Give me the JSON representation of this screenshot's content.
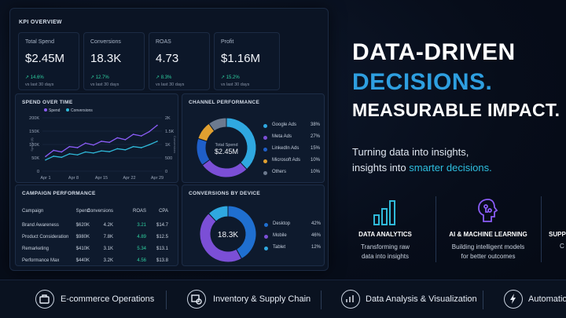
{
  "kpi_overview": {
    "title": "KPI OVERVIEW",
    "cards": [
      {
        "label": "Total Spend",
        "value": "$2.45M",
        "change": "↗ 14.6%",
        "sub": "vs last 30 days"
      },
      {
        "label": "Conversions",
        "value": "18.3K",
        "change": "↗ 12.7%",
        "sub": "vs last 30 days"
      },
      {
        "label": "ROAS",
        "value": "4.73",
        "change": "↗ 8.3%",
        "sub": "vs last 30 days"
      },
      {
        "label": "Profit",
        "value": "$1.16M",
        "change": "↗ 15.2%",
        "sub": "vs last 30 days"
      }
    ]
  },
  "spend_chart": {
    "title": "SPEND OVER TIME",
    "legend": [
      "Spend",
      "Conversions"
    ],
    "left_ticks": [
      "200K",
      "150K",
      "100K",
      "50K",
      "0"
    ],
    "right_ticks": [
      "2K",
      "1.5K",
      "1K",
      "500",
      "0"
    ],
    "x_ticks": [
      "Apr 1",
      "Apr 8",
      "Apr 15",
      "Apr 22",
      "Apr 29"
    ],
    "left_axis_label": "Spend ($)",
    "right_axis_label": "Conversions",
    "colors": {
      "spend": "#8a5cf6",
      "conversions": "#2fb9d9"
    }
  },
  "chart_data": [
    {
      "type": "line",
      "title": "SPEND OVER TIME",
      "x": [
        "Apr 1",
        "Apr 3",
        "Apr 5",
        "Apr 7",
        "Apr 9",
        "Apr 11",
        "Apr 13",
        "Apr 15",
        "Apr 17",
        "Apr 19",
        "Apr 21",
        "Apr 23",
        "Apr 25",
        "Apr 27",
        "Apr 29"
      ],
      "series": [
        {
          "name": "Spend",
          "axis": "left",
          "values": [
            55000,
            78000,
            72000,
            92000,
            88000,
            105000,
            98000,
            112000,
            108000,
            125000,
            118000,
            138000,
            132000,
            148000,
            172000
          ]
        },
        {
          "name": "Conversions",
          "axis": "right",
          "values": [
            420,
            560,
            520,
            650,
            610,
            720,
            680,
            760,
            730,
            840,
            800,
            920,
            880,
            990,
            1120
          ]
        }
      ],
      "ylim_left": [
        0,
        200000
      ],
      "ylim_right": [
        0,
        2000
      ]
    },
    {
      "type": "pie",
      "title": "CHANNEL PERFORMANCE",
      "center_label": "Total Spend",
      "center_value": "$2.45M",
      "categories": [
        "Google Ads",
        "Meta Ads",
        "LinkedIn Ads",
        "Microsoft Ads",
        "Others"
      ],
      "values": [
        38,
        27,
        15,
        10,
        10
      ],
      "colors": [
        "#2fa8e0",
        "#7b4fd6",
        "#1f5fc8",
        "#e0a030",
        "#6c7a8f"
      ]
    },
    {
      "type": "pie",
      "title": "CONVERSIONS BY DEVICE",
      "center_value": "18.3K",
      "categories": [
        "Desktop",
        "Mobile",
        "Tablet"
      ],
      "values": [
        42,
        46,
        12
      ],
      "colors": [
        "#1f6fd0",
        "#7b4fd6",
        "#2fa8e0"
      ]
    },
    {
      "type": "table",
      "title": "CAMPAIGN PERFORMANCE",
      "columns": [
        "Campaign",
        "Spend",
        "Conversions",
        "ROAS",
        "CPA"
      ],
      "rows": [
        [
          "Brand Awareness",
          "$620K",
          "4.2K",
          "3.21",
          "$14.7"
        ],
        [
          "Product Consideration",
          "$980K",
          "7.8K",
          "4.89",
          "$12.5"
        ],
        [
          "Remarketing",
          "$410K",
          "3.1K",
          "5.34",
          "$13.1"
        ],
        [
          "Performance Max",
          "$440K",
          "3.2K",
          "4.56",
          "$13.8"
        ]
      ]
    }
  ],
  "channel_panel": {
    "title": "CHANNEL PERFORMANCE",
    "pcts": [
      "38%",
      "27%",
      "15%",
      "10%",
      "10%"
    ]
  },
  "device_panel": {
    "title": "CONVERSIONS BY DEVICE",
    "pcts": [
      "42%",
      "46%",
      "12%"
    ]
  },
  "campaign_panel": {
    "title": "CAMPAIGN PERFORMANCE"
  },
  "hero": {
    "line1": "DATA-DRIVEN",
    "line2": "DECISIONS.",
    "line3": "MEASURABLE IMPACT.",
    "tagline1": "Turning data into insights,",
    "tagline2_prefix": "insights into ",
    "tagline2_highlight": "smarter decisions."
  },
  "features": [
    {
      "icon": "bar-chart-icon",
      "title": "DATA ANALYTICS",
      "desc1": "Transforming raw",
      "desc2": "data into insights"
    },
    {
      "icon": "brain-circuit-icon",
      "title": "AI & MACHINE LEARNING",
      "desc1": "Building intelligent models",
      "desc2": "for better outcomes"
    },
    {
      "icon": "support-icon",
      "title": "SUPP",
      "desc1": "C",
      "desc2": ""
    }
  ],
  "bottom_bar": [
    {
      "icon": "briefcase-icon",
      "label": "E-commerce Operations"
    },
    {
      "icon": "inventory-icon",
      "label": "Inventory & Supply Chain"
    },
    {
      "icon": "analysis-icon",
      "label": "Data Analysis & Visualization"
    },
    {
      "icon": "lightning-icon",
      "label": "Automatio"
    }
  ]
}
